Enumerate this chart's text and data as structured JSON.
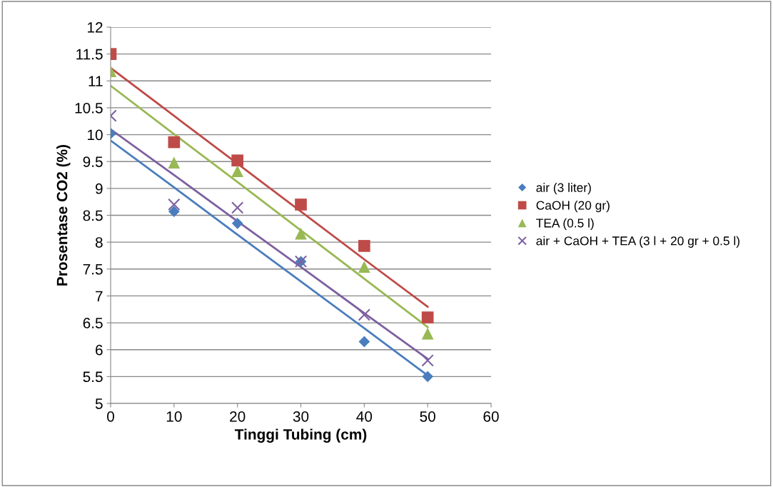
{
  "chart_data": {
    "type": "scatter",
    "xlabel": "Tinggi Tubing (cm)",
    "ylabel": "Prosentase CO2 (%)",
    "x": [
      0,
      10,
      20,
      30,
      40,
      50
    ],
    "series": [
      {
        "name": "air (3 liter)",
        "color": "#4a7dbe",
        "marker": "diamond",
        "values": [
          10.02,
          8.57,
          8.35,
          7.64,
          6.15,
          5.5
        ]
      },
      {
        "name": "CaOH (20 gr)",
        "color": "#be4b48",
        "marker": "square",
        "values": [
          11.5,
          9.86,
          9.52,
          8.7,
          7.93,
          6.6
        ]
      },
      {
        "name": "TEA (0.5 l)",
        "color": "#98b954",
        "marker": "triangle",
        "values": [
          11.18,
          9.48,
          9.32,
          8.16,
          7.54,
          6.3
        ]
      },
      {
        "name": "air + CaOH + TEA (3 l + 20 gr + 0.5 l)",
        "color": "#7d60a0",
        "marker": "cross",
        "values": [
          10.35,
          8.7,
          8.64,
          7.64,
          6.65,
          5.8
        ]
      },
      {
        "type": "line",
        "color": "#4a7dbe",
        "values": [
          9.89,
          9.02,
          8.14,
          7.27,
          6.4,
          5.52
        ]
      },
      {
        "type": "line",
        "color": "#be4b48",
        "values": [
          11.24,
          10.35,
          9.46,
          8.57,
          7.68,
          6.8
        ]
      },
      {
        "type": "line",
        "color": "#98b954",
        "values": [
          10.91,
          10.01,
          9.12,
          8.22,
          7.32,
          6.42
        ]
      },
      {
        "type": "line",
        "color": "#7d60a0",
        "values": [
          10.1,
          9.25,
          8.39,
          7.54,
          6.68,
          5.83
        ]
      }
    ],
    "xlim": [
      0,
      60
    ],
    "xticks": [
      0,
      10,
      20,
      30,
      40,
      50,
      60
    ],
    "ylim": [
      5,
      12
    ],
    "yticks": [
      5,
      5.5,
      6,
      6.5,
      7,
      7.5,
      8,
      8.5,
      9,
      9.5,
      10,
      10.5,
      11,
      11.5,
      12
    ],
    "grid": "y",
    "legend": "right"
  }
}
